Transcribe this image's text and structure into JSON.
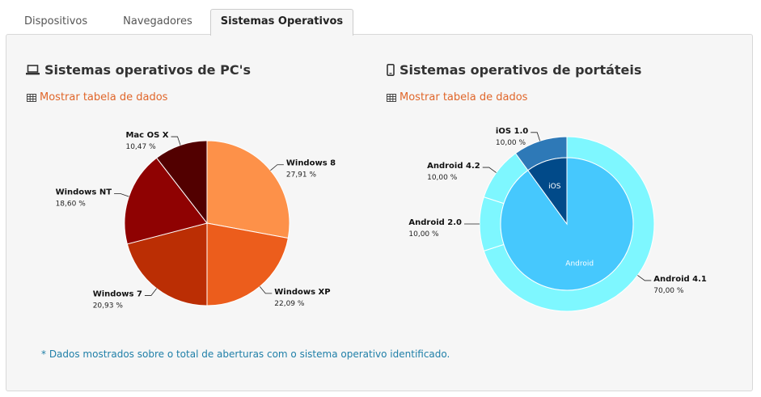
{
  "tabs": [
    {
      "label": "Dispositivos",
      "active": false
    },
    {
      "label": "Navegadores",
      "active": false
    },
    {
      "label": "Sistemas Operativos",
      "active": true
    }
  ],
  "pc_section": {
    "title": "Sistemas operativos de PC's",
    "icon": "laptop-icon",
    "link_label": "Mostrar tabela de dados",
    "link_icon": "table-icon"
  },
  "mobile_section": {
    "title": "Sistemas operativos de portáteis",
    "icon": "mobile-phone-icon",
    "link_label": "Mostrar tabela de dados",
    "link_icon": "table-icon"
  },
  "footnote": "* Dados mostrados sobre o total de aberturas com o sistema operativo identificado.",
  "chart_data": [
    {
      "type": "pie",
      "categories": [
        "Windows 8",
        "Windows XP",
        "Windows 7",
        "Windows NT",
        "Mac OS X"
      ],
      "values": [
        27.91,
        22.09,
        20.93,
        18.6,
        10.47
      ],
      "value_labels": [
        "27,91 %",
        "22,09 %",
        "20,93 %",
        "18,60 %",
        "10,47 %"
      ],
      "colors": [
        "#fd9149",
        "#ec5d1c",
        "#bb2e04",
        "#8f0202",
        "#520000"
      ]
    },
    {
      "type": "pie",
      "inner": {
        "categories": [
          "Android",
          "iOS"
        ],
        "values": [
          90,
          10
        ],
        "colors": [
          "#46c8fd",
          "#014a89"
        ]
      },
      "outer": {
        "categories": [
          "Android 4.1",
          "Android 2.0",
          "Android 4.2",
          "iOS 1.0"
        ],
        "values": [
          70,
          10,
          10,
          10
        ],
        "value_labels": [
          "70,00 %",
          "10,00 %",
          "10,00 %",
          "10,00 %"
        ],
        "colors": [
          "#7ef7ff",
          "#7ef7ff",
          "#7ef7ff",
          "#2e79b7"
        ]
      }
    }
  ]
}
